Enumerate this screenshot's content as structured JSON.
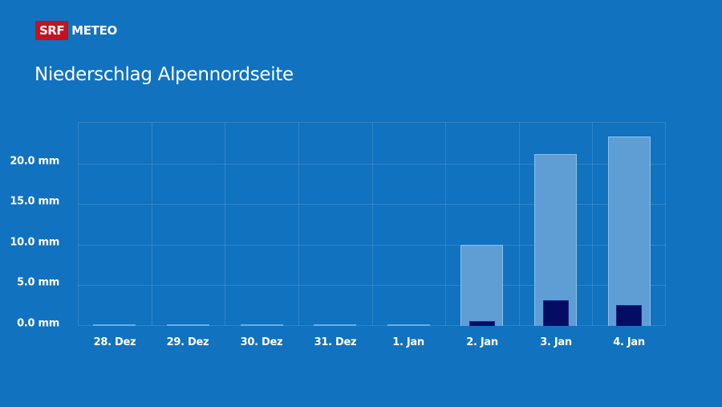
{
  "brand": {
    "logo_left": "SRF",
    "logo_right": "METEO",
    "logo_red": "#c4121e"
  },
  "header": {
    "title": "Niederschlag Alpennordseite"
  },
  "colors": {
    "background": "#1172bf",
    "bar_total": "#5f9ed5",
    "bar_total_border": "#8cc0ec",
    "bar_secondary": "#050d63",
    "text": "#ffffff"
  },
  "axis": {
    "y_ticks": [
      "0.0 mm",
      "5.0 mm",
      "10.0 mm",
      "15.0 mm",
      "20.0 mm"
    ],
    "x_ticks": [
      "28. Dez",
      "29. Dez",
      "30. Dez",
      "31. Dez",
      "1. Jan",
      "2. Jan",
      "3. Jan",
      "4. Jan"
    ]
  },
  "chart_data": {
    "type": "bar",
    "title": "Niederschlag Alpennordseite",
    "xlabel": "",
    "ylabel": "mm",
    "ylim": [
      0,
      25
    ],
    "grid": true,
    "legend": "none",
    "categories": [
      "28. Dez",
      "29. Dez",
      "30. Dez",
      "31. Dez",
      "1. Jan",
      "2. Jan",
      "3. Jan",
      "4. Jan"
    ],
    "y_tick_labels": [
      "0.0 mm",
      "5.0 mm",
      "10.0 mm",
      "15.0 mm",
      "20.0 mm"
    ],
    "series": [
      {
        "name": "upper range (light bar)",
        "color": "#5f9ed5",
        "values": [
          0,
          0,
          0,
          0,
          0,
          10.0,
          21.1,
          23.3
        ]
      },
      {
        "name": "lower range (dark bar)",
        "color": "#050d63",
        "values": [
          0,
          0,
          0,
          0,
          0,
          0.6,
          3.2,
          2.6
        ]
      }
    ]
  }
}
